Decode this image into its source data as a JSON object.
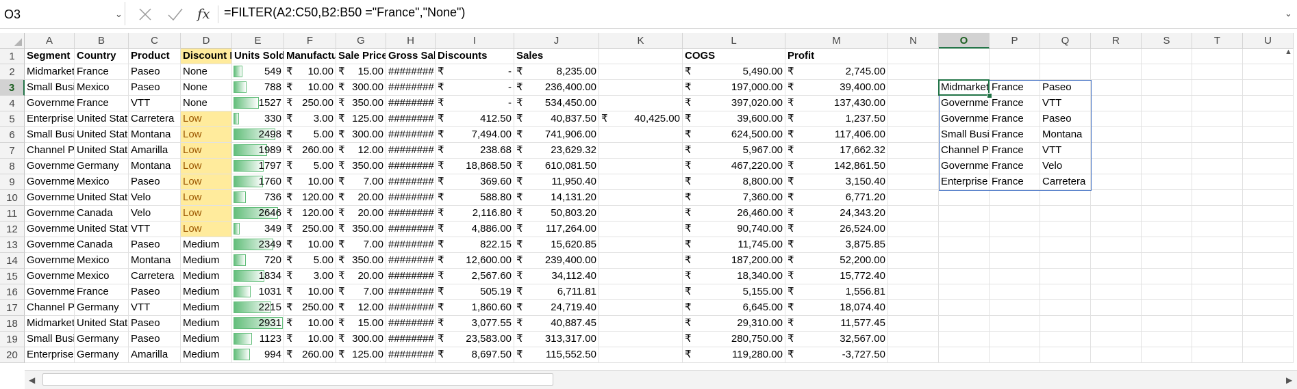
{
  "formula_bar": {
    "name_box": "O3",
    "formula": "=FILTER(A2:C50,B2:B50 =\"France\",\"None\")"
  },
  "columns": [
    "A",
    "B",
    "C",
    "D",
    "E",
    "F",
    "G",
    "H",
    "I",
    "J",
    "K",
    "L",
    "M",
    "N",
    "O",
    "P",
    "Q",
    "R",
    "S",
    "T",
    "U"
  ],
  "rows": [
    "1",
    "2",
    "3",
    "4",
    "5",
    "6",
    "7",
    "8",
    "9",
    "10",
    "11",
    "12",
    "13",
    "14",
    "15",
    "16",
    "17",
    "18",
    "19",
    "20"
  ],
  "selected_column": "O",
  "selected_row": "3",
  "header": [
    "Segment",
    "Country",
    "Product",
    "Discount Band",
    "Units Sold",
    "Manufacturing Price",
    "Sale Price",
    "Gross Sales",
    "Discounts",
    "Sales",
    "",
    "COGS",
    "Profit"
  ],
  "currency_symbol": "₹",
  "data": [
    {
      "segment": "Midmarket",
      "country": "France",
      "product": "Paseo",
      "band": "None",
      "units": "549",
      "units_frac": 0.18,
      "mfg": "10.00",
      "sale": "15.00",
      "gross": "########",
      "disc": "-",
      "sales": "8,235.00",
      "k": "",
      "cogs": "5,490.00",
      "profit": "2,745.00"
    },
    {
      "segment": "Small Business",
      "country": "Mexico",
      "product": "Paseo",
      "band": "None",
      "units": "788",
      "units_frac": 0.27,
      "mfg": "10.00",
      "sale": "300.00",
      "gross": "########",
      "disc": "-",
      "sales": "236,400.00",
      "k": "",
      "cogs": "197,000.00",
      "profit": "39,400.00"
    },
    {
      "segment": "Government",
      "country": "France",
      "product": "VTT",
      "band": "None",
      "units": "1527",
      "units_frac": 0.52,
      "mfg": "250.00",
      "sale": "350.00",
      "gross": "########",
      "disc": "-",
      "sales": "534,450.00",
      "k": "",
      "cogs": "397,020.00",
      "profit": "137,430.00"
    },
    {
      "segment": "Enterprise",
      "country": "United States of America",
      "product": "Carretera",
      "band": "Low",
      "units": "330",
      "units_frac": 0.11,
      "mfg": "3.00",
      "sale": "125.00",
      "gross": "########",
      "disc": "412.50",
      "sales": "40,837.50",
      "k": "40,425.00",
      "cogs": "39,600.00",
      "profit": "1,237.50"
    },
    {
      "segment": "Small Business",
      "country": "United States of America",
      "product": "Montana",
      "band": "Low",
      "units": "2498",
      "units_frac": 0.85,
      "mfg": "5.00",
      "sale": "300.00",
      "gross": "########",
      "disc": "7,494.00",
      "sales": "741,906.00",
      "k": "",
      "cogs": "624,500.00",
      "profit": "117,406.00"
    },
    {
      "segment": "Channel Partners",
      "country": "United States of America",
      "product": "Amarilla",
      "band": "Low",
      "units": "1989",
      "units_frac": 0.68,
      "mfg": "260.00",
      "sale": "12.00",
      "gross": "########",
      "disc": "238.68",
      "sales": "23,629.32",
      "k": "",
      "cogs": "5,967.00",
      "profit": "17,662.32"
    },
    {
      "segment": "Government",
      "country": "Germany",
      "product": "Montana",
      "band": "Low",
      "units": "1797",
      "units_frac": 0.61,
      "mfg": "5.00",
      "sale": "350.00",
      "gross": "########",
      "disc": "18,868.50",
      "sales": "610,081.50",
      "k": "",
      "cogs": "467,220.00",
      "profit": "142,861.50"
    },
    {
      "segment": "Government",
      "country": "Mexico",
      "product": "Paseo",
      "band": "Low",
      "units": "1760",
      "units_frac": 0.6,
      "mfg": "10.00",
      "sale": "7.00",
      "gross": "########",
      "disc": "369.60",
      "sales": "11,950.40",
      "k": "",
      "cogs": "8,800.00",
      "profit": "3,150.40"
    },
    {
      "segment": "Government",
      "country": "United States of America",
      "product": "Velo",
      "band": "Low",
      "units": "736",
      "units_frac": 0.25,
      "mfg": "120.00",
      "sale": "20.00",
      "gross": "########",
      "disc": "588.80",
      "sales": "14,131.20",
      "k": "",
      "cogs": "7,360.00",
      "profit": "6,771.20"
    },
    {
      "segment": "Government",
      "country": "Canada",
      "product": "Velo",
      "band": "Low",
      "units": "2646",
      "units_frac": 0.9,
      "mfg": "120.00",
      "sale": "20.00",
      "gross": "########",
      "disc": "2,116.80",
      "sales": "50,803.20",
      "k": "",
      "cogs": "26,460.00",
      "profit": "24,343.20"
    },
    {
      "segment": "Government",
      "country": "United States of America",
      "product": "VTT",
      "band": "Low",
      "units": "349",
      "units_frac": 0.12,
      "mfg": "250.00",
      "sale": "350.00",
      "gross": "########",
      "disc": "4,886.00",
      "sales": "117,264.00",
      "k": "",
      "cogs": "90,740.00",
      "profit": "26,524.00"
    },
    {
      "segment": "Government",
      "country": "Canada",
      "product": "Paseo",
      "band": "Medium",
      "units": "2349",
      "units_frac": 0.8,
      "mfg": "10.00",
      "sale": "7.00",
      "gross": "########",
      "disc": "822.15",
      "sales": "15,620.85",
      "k": "",
      "cogs": "11,745.00",
      "profit": "3,875.85"
    },
    {
      "segment": "Government",
      "country": "Mexico",
      "product": "Montana",
      "band": "Medium",
      "units": "720",
      "units_frac": 0.25,
      "mfg": "5.00",
      "sale": "350.00",
      "gross": "########",
      "disc": "12,600.00",
      "sales": "239,400.00",
      "k": "",
      "cogs": "187,200.00",
      "profit": "52,200.00"
    },
    {
      "segment": "Government",
      "country": "Mexico",
      "product": "Carretera",
      "band": "Medium",
      "units": "1834",
      "units_frac": 0.63,
      "mfg": "3.00",
      "sale": "20.00",
      "gross": "########",
      "disc": "2,567.60",
      "sales": "34,112.40",
      "k": "",
      "cogs": "18,340.00",
      "profit": "15,772.40"
    },
    {
      "segment": "Government",
      "country": "France",
      "product": "Paseo",
      "band": "Medium",
      "units": "1031",
      "units_frac": 0.35,
      "mfg": "10.00",
      "sale": "7.00",
      "gross": "########",
      "disc": "505.19",
      "sales": "6,711.81",
      "k": "",
      "cogs": "5,155.00",
      "profit": "1,556.81"
    },
    {
      "segment": "Channel Partners",
      "country": "Germany",
      "product": "VTT",
      "band": "Medium",
      "units": "2215",
      "units_frac": 0.76,
      "mfg": "250.00",
      "sale": "12.00",
      "gross": "########",
      "disc": "1,860.60",
      "sales": "24,719.40",
      "k": "",
      "cogs": "6,645.00",
      "profit": "18,074.40"
    },
    {
      "segment": "Midmarket",
      "country": "United States of America",
      "product": "Paseo",
      "band": "Medium",
      "units": "2931",
      "units_frac": 1.0,
      "mfg": "10.00",
      "sale": "15.00",
      "gross": "########",
      "disc": "3,077.55",
      "sales": "40,887.45",
      "k": "",
      "cogs": "29,310.00",
      "profit": "11,577.45"
    },
    {
      "segment": "Small Business",
      "country": "Germany",
      "product": "Paseo",
      "band": "Medium",
      "units": "1123",
      "units_frac": 0.38,
      "mfg": "10.00",
      "sale": "300.00",
      "gross": "########",
      "disc": "23,583.00",
      "sales": "313,317.00",
      "k": "",
      "cogs": "280,750.00",
      "profit": "32,567.00"
    },
    {
      "segment": "Enterprise",
      "country": "Germany",
      "product": "Amarilla",
      "band": "Medium",
      "units": "994",
      "units_frac": 0.34,
      "mfg": "260.00",
      "sale": "125.00",
      "gross": "########",
      "disc": "8,697.50",
      "sales": "115,552.50",
      "k": "",
      "cogs": "119,280.00",
      "profit": "-3,727.50"
    }
  ],
  "filter_result": [
    [
      "Midmarket",
      "France",
      "Paseo"
    ],
    [
      "Government",
      "France",
      "VTT"
    ],
    [
      "Government",
      "France",
      "Paseo"
    ],
    [
      "Small Business",
      "France",
      "Montana"
    ],
    [
      "Channel Partners",
      "France",
      "VTT"
    ],
    [
      "Government",
      "France",
      "Velo"
    ],
    [
      "Enterprise",
      "France",
      "Carretera"
    ]
  ],
  "colors": {
    "accent": "#217346",
    "spill_border": "#4472c4",
    "low_band_fill": "#ffeb9c",
    "low_band_text": "#9c5700",
    "databar": "#63be7b"
  }
}
